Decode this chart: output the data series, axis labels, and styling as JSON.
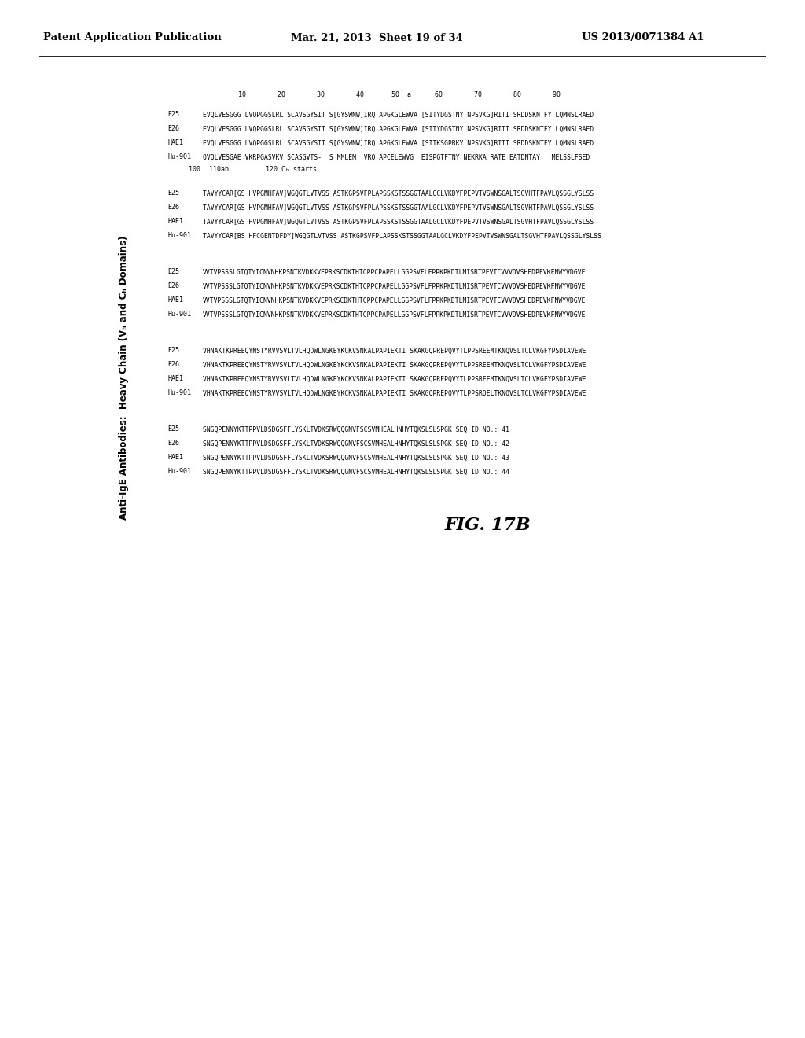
{
  "header_left": "Patent Application Publication",
  "header_mid": "Mar. 21, 2013  Sheet 19 of 34",
  "header_right": "US 2013/0071384 A1",
  "title": "Anti-IgE Antibodies:  Heavy Chain (Vₕ and Cₕ Domains)",
  "figure_label": "FIG. 17B",
  "background_color": "#ffffff",
  "s1_pos": "         10        20        30        40       50  a      60        70        80        90",
  "s1_rows": [
    {
      "label": "E25",
      "seq": "EVQLVESGGG LVQPGGSLRL SCAVSGYSIT S[GYSWNW]IRQ APGKGLEWVA [SITYDGSTNY NPSVKG]RITI SRDDSKNTFY LQMNSLRAED"
    },
    {
      "label": "E26",
      "seq": "EVQLVESGGG LVQPGGSLRL SCAVSGYSIT S[GYSWNW]IRQ APGKGLEWVA [SITYDGSTNY NPSVKG]RITI SRDDSKNTFY LQMNSLRAED"
    },
    {
      "label": "HAE1",
      "seq": "EVQLVESGGG LVQPGGSLRL SCAVSGYSIT S[GYSWNW]IRQ APGKGLEWVA [SITKSGPRKY NPSVKG]RITI SRDDSKNTFY LQMNSLRAED"
    },
    {
      "label": "Hu-901",
      "seq": "QVQLVESGAE VKRPGASVKV SCASGVTS-  S MMLEM  VRQ APCELEWVG  EISPGTFTNY NEKRKA RATE EATDNTAY   MELSSLFSED"
    }
  ],
  "s2_header": "110ab",
  "s2_pos100": "100",
  "s2_ch_header": "120 Cₕ starts",
  "s2_rows": [
    {
      "label": "E25",
      "seq": "TAVYYCAR[GS HVPGMHFAV]WGQGTLVTVSS ASTKGPSVFPLAPSSKSTSSGGTAALGCLVKDYFPEPVTVSWNSGALTSGVHTFPAVLQSSGLYSLSS"
    },
    {
      "label": "E26",
      "seq": "TAVYYCAR[GS HVPGMHFAV]WGQGTLVTVSS ASTKGPSVFPLAPSSKSTSSGGTAALGCLVKDYFPEPVTVSWNSGALTSGVHTFPAVLQSSGLYSLSS"
    },
    {
      "label": "HAE1",
      "seq": "TAVYYCAR[GS HVPGMHFAV]WGQGTLVTVSS ASTKGPSVFPLAPSSKSTSSGGTAALGCLVKDYFPEPVTVSWNSGALTSGVHTFPAVLQSSGLYSLSS"
    },
    {
      "label": "Hu-901",
      "seq": "TAVYYCAR[BS HFCGENTDFDY]WGQGTLVTVSS ASTKGPSVFPLAPSSKSTSSGGTAALGCLVKDYFPEPVTVSWNSGALTSGVHTFPAVLQSSGLYSLSS"
    }
  ],
  "s3_rows": [
    {
      "label": "E25",
      "seq": "VVTVPSSSLGTQTYICNVNHKPSNTKVDKKVEPRKSCDKTHTCPPCPAPELLGGPSVFLFPPKPKDTLMISRTPEVTCVVVDVSHEDPEVKFNWYVDGVE"
    },
    {
      "label": "E26",
      "seq": "VVTVPSSSLGTQTYICNVNHKPSNTKVDKKVEPRKSCDKTHTCPPCPAPELLGGPSVFLFPPKPKDTLMISRTPEVTCVVVDVSHEDPEVKFNWYVDGVE"
    },
    {
      "label": "HAE1",
      "seq": "VVTVPSSSLGTQTYICNVNHKPSNTKVDKKVEPRKSCDKTHTCPPCPAPELLGGPSVFLFPPKPKDTLMISRTPEVTCVVVDVSHEDPEVKFNWYVDGVE"
    },
    {
      "label": "Hu-901",
      "seq": "VVTVPSSSLGTQTYICNVNHKPSNTKVDKKVEPRKSCDKTHTCPPCPAPELLGGPSVFLFPPKPKDTLMISRTPEVTCVVVDVSHEDPEVKFNWYVDGVE"
    }
  ],
  "s4_rows": [
    {
      "label": "E25",
      "seq": "VHNAKTKPREEQYNSTYRVVSVLTVLHQDWLNGKEYKCKVSNKALPAPIEKTI SKAKGQPREPQVYTLPPSREEMTKNQVSLTCLVKGFYPSDIAVEWE"
    },
    {
      "label": "E26",
      "seq": "VHNAKTKPREEQYNSTYRVVSVLTVLHQDWLNGKEYKCKVSNKALPAPIEKTI SKAKGQPREPQVYTLPPSREEMTKNQVSLTCLVKGFYPSDIAVEWE"
    },
    {
      "label": "HAE1",
      "seq": "VHNAKTKPREEQYNSTYRVVSVLTVLHQDWLNGKEYKCKVSNKALPAPIEKTI SKAKGQPREPQVYTLPPSREEMTKNQVSLTCLVKGFYPSDIAVEWE"
    },
    {
      "label": "Hu-901",
      "seq": "VHNAKTKPREEQYNSTYRVVSVLTVLHQDWLNGKEYKCKVSNKALPAPIEKTI SKAKGQPREPQVYTLPPSRDELTKNQVSLTCLVKGFYPSDIAVEWE"
    }
  ],
  "s5_rows": [
    {
      "label": "E25",
      "seq": "SNGQPENNYKTTPPVLDSDGSFFLYSKLTVDKSRWQQGNVFSCSVMHEALHNHYTQKSLSLSPGK SEQ ID NO.: 41"
    },
    {
      "label": "E26",
      "seq": "SNGQPENNYKTTPPVLDSDGSFFLYSKLTVDKSRWQQGNVFSCSVMHEALHNHYTQKSLSLSPGK SEQ ID NO.: 42"
    },
    {
      "label": "HAE1",
      "seq": "SNGQPENNYKTTPPVLDSDGSFFLYSKLTVDKSRWQQGNVFSCSVMHEALHNHYTQKSLSLSPGK SEQ ID NO.: 43"
    },
    {
      "label": "Hu-901",
      "seq": "SNGQPENNYKTTPPVLDSDGSFFLYSKLTVDKSRWQQGNVFSCSVMHEALHNHYTQKSLSLSPGK SEQ ID NO.: 44"
    }
  ]
}
